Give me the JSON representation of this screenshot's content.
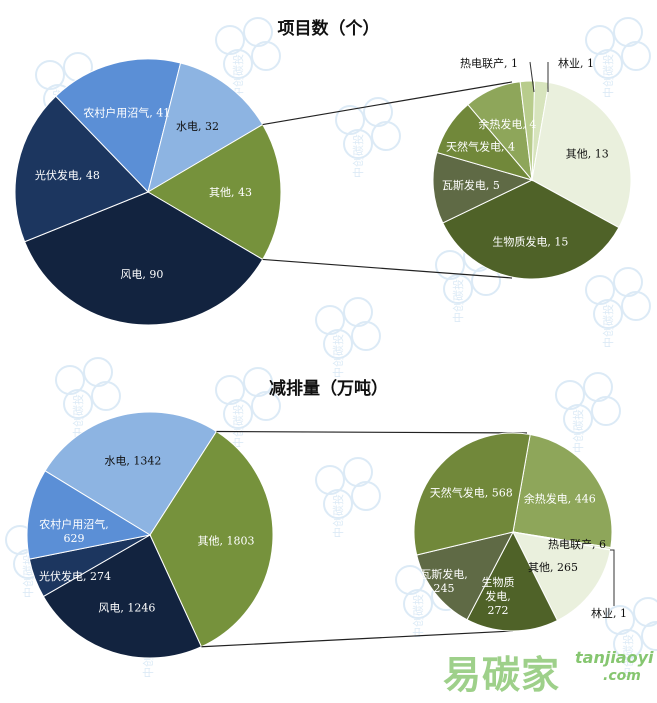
{
  "chart_data": [
    {
      "type": "pie",
      "title": "项目数（个）",
      "series": [
        {
          "label": "农村户用沼气, 41",
          "value": 41,
          "color": "#5b8fd6"
        },
        {
          "label": "水电, 32",
          "value": 32,
          "color": "#8db4e2"
        },
        {
          "label": "其他, 43",
          "value": 43,
          "color": "#76923c"
        },
        {
          "label": "风电, 90",
          "value": 90,
          "color": "#12233f"
        },
        {
          "label": "光伏发电, 48",
          "value": 48,
          "color": "#1c365f"
        }
      ],
      "secondary": [
        {
          "label": "林业, 1",
          "value": 1,
          "color": "#d7e4bd"
        },
        {
          "label": "其他, 13",
          "value": 13,
          "color": "#eaf0dd"
        },
        {
          "label": "生物质发电, 15",
          "value": 15,
          "color": "#4f6228"
        },
        {
          "label": "瓦斯发电, 5",
          "value": 5,
          "color": "#5f6a45"
        },
        {
          "label": "天然气发电, 4",
          "value": 4,
          "color": "#71883a"
        },
        {
          "label": "余热发电, 4",
          "value": 4,
          "color": "#8ea65a"
        },
        {
          "label": "热电联产, 1",
          "value": 1,
          "color": "#b8cc8c"
        }
      ]
    },
    {
      "type": "pie",
      "title": "减排量（万吨）",
      "series": [
        {
          "label": "水电, 1342",
          "value": 1342,
          "color": "#8db4e2"
        },
        {
          "label": "其他, 1803",
          "value": 1803,
          "color": "#76923c"
        },
        {
          "label": "风电, 1246",
          "value": 1246,
          "color": "#12233f"
        },
        {
          "label": "光伏发电, 274",
          "value": 274,
          "color": "#1c365f"
        },
        {
          "label": "农村户用沼气, 629",
          "value": 629,
          "color": "#5b8fd6"
        }
      ],
      "secondary": [
        {
          "label": "余热发电, 446",
          "value": 446,
          "color": "#8ea65a"
        },
        {
          "label": "热电联产, 6",
          "value": 6,
          "color": "#d7e4bd"
        },
        {
          "label": "林业, 1",
          "value": 1,
          "color": "#c9d9a8"
        },
        {
          "label": "其他, 265",
          "value": 265,
          "color": "#eaf0dd"
        },
        {
          "label": "生物质发电, 272",
          "value": 272,
          "color": "#4f6228"
        },
        {
          "label": "瓦斯发电, 245",
          "value": 245,
          "color": "#5f6a45"
        },
        {
          "label": "天然气发电, 568",
          "value": 568,
          "color": "#71883a"
        }
      ]
    }
  ],
  "watermark": {
    "text": "中创碳投"
  },
  "brand": {
    "cn": "易碳家",
    "en": "tanjiaoyi",
    "com": ".com"
  }
}
